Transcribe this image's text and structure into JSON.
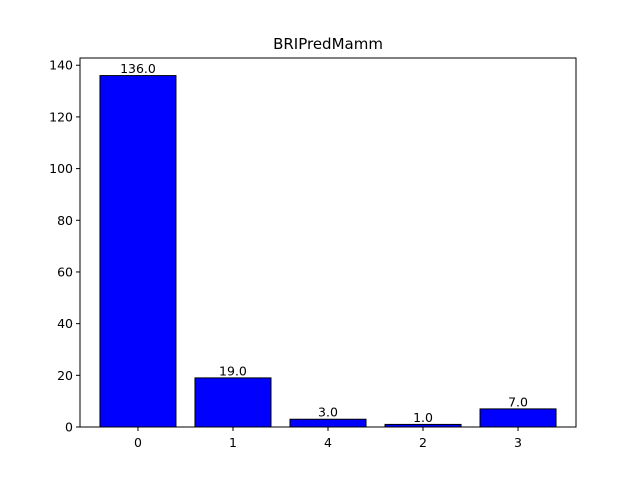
{
  "chart_data": {
    "type": "bar",
    "title": "BRIPredMamm",
    "xlabel": "",
    "ylabel": "",
    "categories": [
      "0",
      "1",
      "4",
      "2",
      "3"
    ],
    "values": [
      136.0,
      19.0,
      3.0,
      1.0,
      7.0
    ],
    "value_labels": [
      "136.0",
      "19.0",
      "3.0",
      "1.0",
      "7.0"
    ],
    "ylim": [
      0,
      142.8
    ],
    "yticks": [
      0,
      20,
      40,
      60,
      80,
      100,
      120,
      140
    ],
    "grid": false,
    "legend": "none",
    "bar_color": "#0000ff",
    "edge_color": "#000000"
  }
}
